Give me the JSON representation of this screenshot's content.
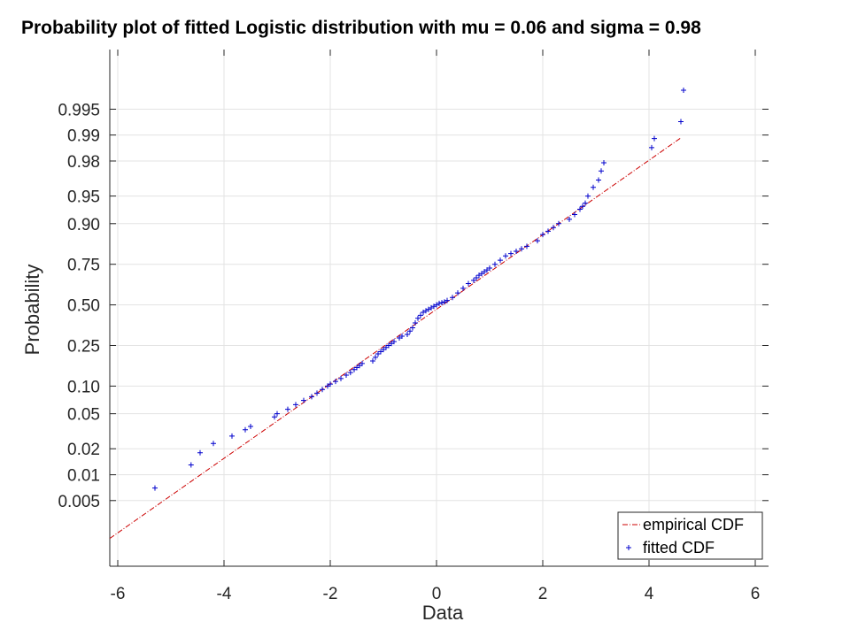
{
  "chart_data": {
    "type": "scatter",
    "title": "Probability plot of fitted Logistic distribution with mu = 0.06 and sigma = 0.98",
    "xlabel": "Data",
    "ylabel": "Probability",
    "xlim": [
      -6.15,
      6.25
    ],
    "x_ticks": [
      -6,
      -4,
      -2,
      0,
      2,
      4,
      6
    ],
    "x_tick_labels": [
      "-6",
      "-4",
      "-2",
      "0",
      "2",
      "4",
      "6"
    ],
    "y_scale": "logit",
    "ylim": [
      0.00085,
      0.999
    ],
    "y_ticks": [
      0.005,
      0.01,
      0.02,
      0.05,
      0.1,
      0.25,
      0.5,
      0.75,
      0.9,
      0.95,
      0.98,
      0.99,
      0.995
    ],
    "y_tick_labels": [
      "0.005",
      "0.01",
      "0.02",
      "0.05",
      "0.10",
      "0.25",
      "0.50",
      "0.75",
      "0.90",
      "0.95",
      "0.98",
      "0.99",
      "0.995"
    ],
    "grid": true,
    "legend_position": "bottom-right",
    "series": [
      {
        "name": "empirical CDF",
        "style": "dash-dot line",
        "color": "#cc0000",
        "x": [
          -6.15,
          4.6
        ],
        "y": [
          0.0018,
          0.9892
        ]
      },
      {
        "name": "fitted CDF",
        "style": "plus markers",
        "color": "#0000cc",
        "x": [
          -5.3,
          -4.62,
          -4.45,
          -4.2,
          -3.85,
          -3.6,
          -3.5,
          -3.05,
          -3.0,
          -2.8,
          -2.65,
          -2.5,
          -2.35,
          -2.25,
          -2.15,
          -2.05,
          -2.0,
          -1.9,
          -1.8,
          -1.7,
          -1.62,
          -1.55,
          -1.5,
          -1.45,
          -1.4,
          -1.2,
          -1.15,
          -1.1,
          -1.05,
          -1.0,
          -0.95,
          -0.9,
          -0.85,
          -0.8,
          -0.7,
          -0.65,
          -0.55,
          -0.5,
          -0.45,
          -0.4,
          -0.35,
          -0.3,
          -0.25,
          -0.2,
          -0.15,
          -0.1,
          -0.05,
          0.0,
          0.05,
          0.1,
          0.15,
          0.2,
          0.3,
          0.4,
          0.5,
          0.6,
          0.7,
          0.75,
          0.8,
          0.85,
          0.9,
          0.95,
          1.0,
          1.1,
          1.2,
          1.3,
          1.4,
          1.5,
          1.6,
          1.7,
          1.9,
          2.0,
          2.1,
          2.2,
          2.3,
          2.5,
          2.6,
          2.7,
          2.75,
          2.8,
          2.85,
          2.95,
          3.05,
          3.1,
          3.15,
          4.05,
          4.1,
          4.6,
          4.65
        ],
        "y": [
          0.007,
          0.013,
          0.018,
          0.023,
          0.028,
          0.033,
          0.036,
          0.046,
          0.05,
          0.056,
          0.063,
          0.07,
          0.077,
          0.084,
          0.092,
          0.1,
          0.105,
          0.112,
          0.12,
          0.13,
          0.138,
          0.148,
          0.155,
          0.162,
          0.17,
          0.18,
          0.195,
          0.21,
          0.22,
          0.23,
          0.24,
          0.25,
          0.26,
          0.27,
          0.29,
          0.3,
          0.31,
          0.33,
          0.35,
          0.38,
          0.41,
          0.43,
          0.45,
          0.46,
          0.47,
          0.48,
          0.49,
          0.5,
          0.51,
          0.515,
          0.52,
          0.53,
          0.55,
          0.58,
          0.61,
          0.64,
          0.66,
          0.675,
          0.69,
          0.7,
          0.71,
          0.72,
          0.73,
          0.75,
          0.77,
          0.79,
          0.8,
          0.81,
          0.82,
          0.83,
          0.85,
          0.87,
          0.88,
          0.89,
          0.9,
          0.91,
          0.92,
          0.93,
          0.935,
          0.94,
          0.95,
          0.96,
          0.967,
          0.974,
          0.979,
          0.986,
          0.989,
          0.993,
          0.997
        ]
      }
    ]
  }
}
